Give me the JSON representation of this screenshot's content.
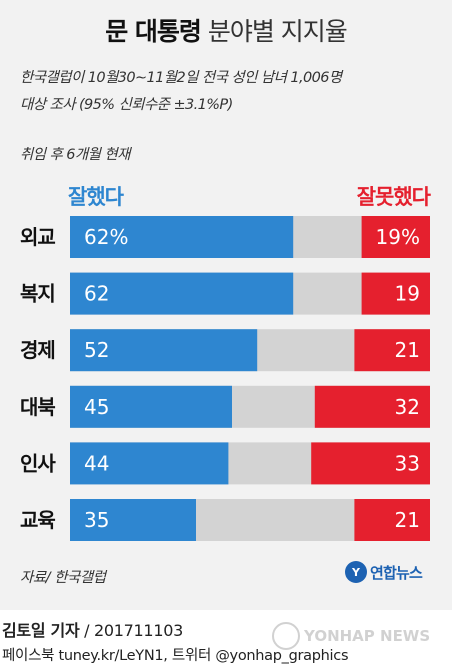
{
  "header": {
    "title_main": "문 대통령",
    "title_sub": "분야별 지지율",
    "survey_line1": "한국갤럽이 10월30∼11월2일 전국 성인 남녀 1,006명",
    "survey_line2": "대상 조사 (95% 신뢰수준 ±3.1%P)",
    "period": "취임 후 6개월 현재"
  },
  "chart_data": {
    "type": "bar",
    "orientation": "horizontal",
    "stacked": true,
    "xlim": [
      0,
      100
    ],
    "categories": [
      "외교",
      "복지",
      "경제",
      "대북",
      "인사",
      "교육"
    ],
    "series": [
      {
        "name": "잘했다",
        "values": [
          62,
          62,
          52,
          45,
          44,
          35
        ],
        "labels": [
          "62%",
          "62",
          "52",
          "45",
          "44",
          "35"
        ],
        "color": "#2e86d0"
      },
      {
        "name": "잘못했다",
        "values": [
          19,
          19,
          21,
          32,
          33,
          21
        ],
        "labels": [
          "19%",
          "19",
          "21",
          "32",
          "33",
          "21"
        ],
        "color": "#e5202e"
      }
    ],
    "remainder_color": "#d3d3d3",
    "legend": "top",
    "grid": false
  },
  "footer": {
    "source": "자료/ 한국갤럽",
    "logo_mark": "Y",
    "logo_text": "연합뉴스",
    "reporter": "김토일 기자",
    "date_code": " / 201711103",
    "social": "페이스북 tuney.kr/LeYN1, 트위터 @yonhap_graphics",
    "watermark": "YONHAP NEWS"
  }
}
